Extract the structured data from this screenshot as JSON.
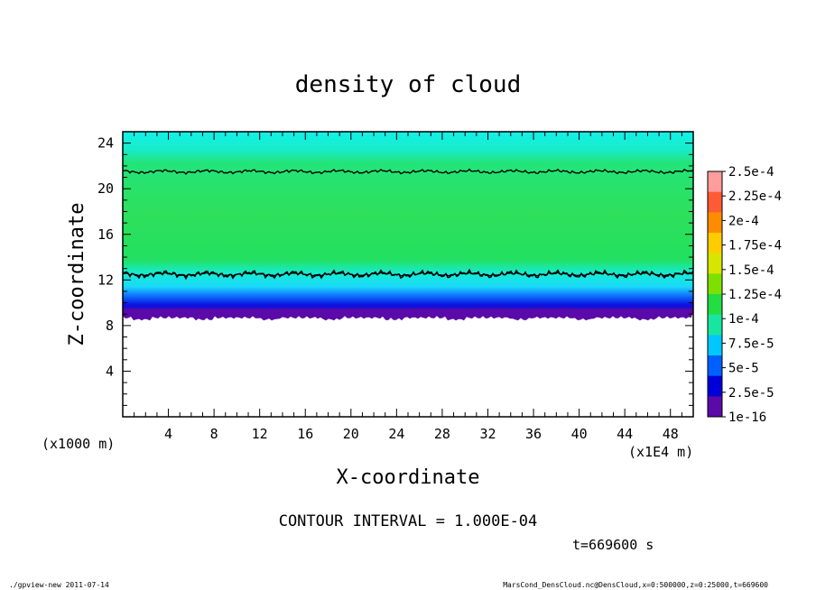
{
  "chart_data": {
    "type": "heatmap",
    "title": "density of cloud",
    "xlabel": "X-coordinate",
    "ylabel": "Z-coordinate",
    "x_unit_note": "(x1E4 m)",
    "y_unit_note": "(x1000 m)",
    "xlim": [
      0,
      50
    ],
    "ylim": [
      0,
      25
    ],
    "x_ticks": [
      4,
      8,
      12,
      16,
      20,
      24,
      28,
      32,
      36,
      40,
      44,
      48
    ],
    "y_ticks": [
      4,
      8,
      12,
      16,
      20,
      24
    ],
    "cloud_layer": {
      "z_bottom": 9.0,
      "z_top": 25.0,
      "dense_core": [
        12.5,
        21.5
      ]
    },
    "contour_interval_text": "CONTOUR INTERVAL = 1.000E-04",
    "time_text": "t=669600 s",
    "colorbar": {
      "labels": [
        "2.5e-4",
        "2.25e-4",
        "2e-4",
        "1.75e-4",
        "1.5e-4",
        "1.25e-4",
        "1e-4",
        "7.5e-5",
        "5e-5",
        "2.5e-5",
        "1e-16"
      ],
      "colors": [
        "#ff9c9c",
        "#ff5a36",
        "#ff8c00",
        "#ffcc00",
        "#d6e600",
        "#7ee000",
        "#22dd44",
        "#18e6a0",
        "#00c8ff",
        "#0060ff",
        "#0000d8",
        "#5a0aa8"
      ]
    }
  },
  "footer": {
    "left": "./gpview-new   2011-07-14",
    "right": "MarsCond_DensCloud.nc@DensCloud,x=0:500000,z=0:25000,t=669600"
  }
}
